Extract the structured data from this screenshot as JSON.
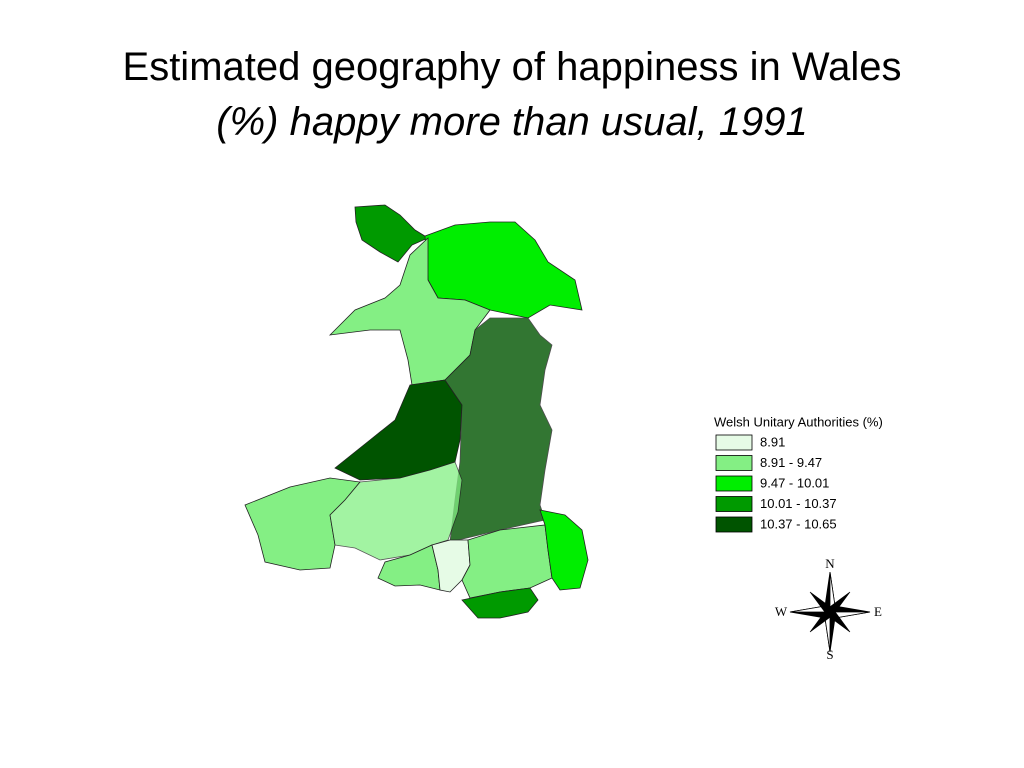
{
  "title": "Estimated geography of happiness in Wales",
  "subtitle": "(%) happy more than usual, 1991",
  "legend": {
    "title": "Welsh Unitary Authorities (%)",
    "items": [
      {
        "label": "8.91",
        "color": "#e6fbe6"
      },
      {
        "label": "8.91 - 9.47",
        "color": "#84ef84"
      },
      {
        "label": "9.47 - 10.01",
        "color": "#00ee00"
      },
      {
        "label": "10.01 - 10.37",
        "color": "#009a00"
      },
      {
        "label": "10.37 - 10.65",
        "color": "#005400"
      }
    ]
  },
  "compass": {
    "n": "N",
    "e": "E",
    "s": "S",
    "w": "W"
  }
}
